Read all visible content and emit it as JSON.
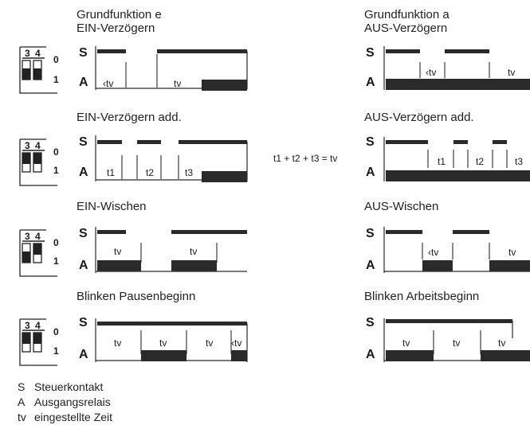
{
  "left": [
    {
      "title": [
        "Grundfunktion e",
        "EIN-Verzögern"
      ],
      "switch": [
        "down",
        "down"
      ]
    },
    {
      "title": [
        "EIN-Verzögern add."
      ],
      "switch": [
        "up",
        "up"
      ]
    },
    {
      "title": [
        "EIN-Wischen"
      ],
      "switch": [
        "down",
        "up"
      ]
    },
    {
      "title": [
        "Blinken Pausenbeginn"
      ],
      "switch": [
        "up",
        "up"
      ]
    }
  ],
  "right": [
    {
      "title": [
        "Grundfunktion a",
        "AUS-Verzögern"
      ]
    },
    {
      "title": [
        "AUS-Verzögern add."
      ]
    },
    {
      "title": [
        "AUS-Wischen"
      ]
    },
    {
      "title": [
        "Blinken Arbeitsbeginn"
      ]
    }
  ],
  "signals": {
    "s": "S",
    "a": "A"
  },
  "dip": {
    "num3": "3",
    "num4": "4",
    "zero": "0",
    "one": "1"
  },
  "labels": {
    "tv": "tv",
    "lt_tv": "‹tv",
    "t1": "t1",
    "t2": "t2",
    "t3": "t3"
  },
  "formula": "t1 + t2 + t3 = tv",
  "legend": [
    {
      "key": "S",
      "text": "Steuerkontakt"
    },
    {
      "key": "A",
      "text": "Ausgangsrelais"
    },
    {
      "key": "tv",
      "text": "eingestellte Zeit"
    }
  ]
}
